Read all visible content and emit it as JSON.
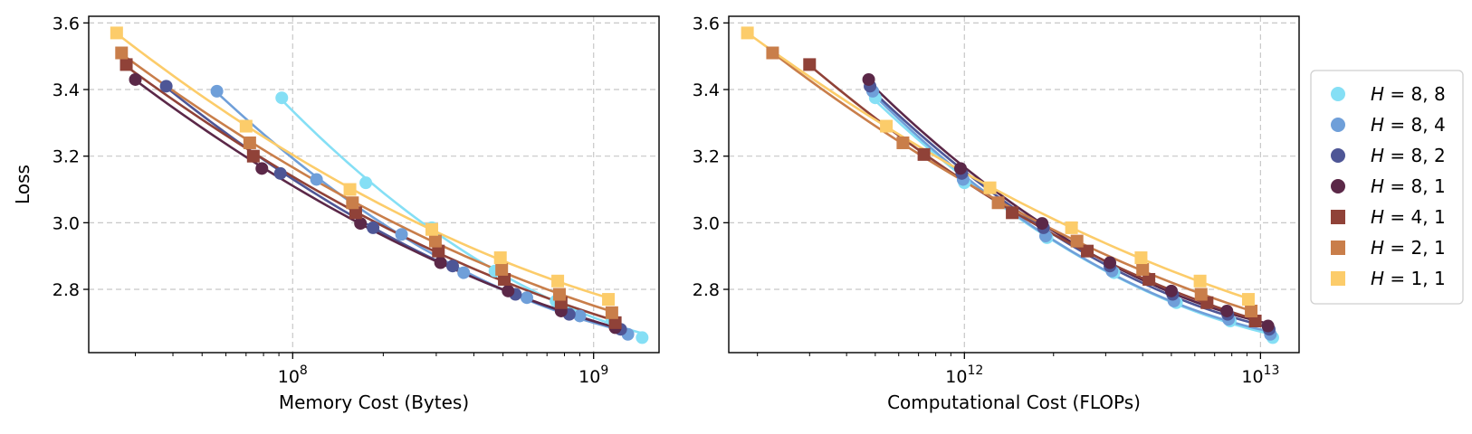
{
  "chart_data": [
    {
      "type": "scatter",
      "title": "",
      "xlabel": "Memory Cost (Bytes)",
      "ylabel": "Loss",
      "xscale": "log",
      "xlim": [
        21000000,
        1650000000
      ],
      "ylim": [
        2.61,
        3.62
      ],
      "xtick_labels": [
        "10^8",
        "10^9"
      ],
      "ytick_labels": [
        "2.8",
        "3.0",
        "3.2",
        "3.4",
        "3.6"
      ],
      "grid": true,
      "series": [
        {
          "name": "H=8,8",
          "marker": "circle",
          "color": "#85dff5",
          "x": [
            92000000,
            175000000,
            290000000,
            470000000,
            750000000,
            1150000000,
            1450000000
          ],
          "y": [
            3.375,
            3.12,
            2.985,
            2.855,
            2.765,
            2.71,
            2.655
          ]
        },
        {
          "name": "H=8,4",
          "marker": "circle",
          "color": "#6f9fd9",
          "x": [
            56000000,
            120000000,
            230000000,
            370000000,
            600000000,
            900000000,
            1300000000
          ],
          "y": [
            3.395,
            3.13,
            2.965,
            2.85,
            2.775,
            2.72,
            2.665
          ]
        },
        {
          "name": "H=8,2",
          "marker": "circle",
          "color": "#4e5696",
          "x": [
            38000000,
            91000000,
            185000000,
            340000000,
            550000000,
            830000000,
            1230000000
          ],
          "y": [
            3.41,
            3.148,
            2.985,
            2.87,
            2.785,
            2.725,
            2.68
          ]
        },
        {
          "name": "H=8,1",
          "marker": "circle",
          "color": "#5b2848",
          "x": [
            30000000,
            79000000,
            168000000,
            310000000,
            520000000,
            780000000,
            1180000000
          ],
          "y": [
            3.43,
            3.163,
            2.998,
            2.88,
            2.795,
            2.735,
            2.685
          ]
        },
        {
          "name": "H=4,1",
          "marker": "square",
          "color": "#904238",
          "x": [
            28000000,
            74000000,
            162000000,
            305000000,
            505000000,
            780000000,
            1180000000
          ],
          "y": [
            3.475,
            3.2,
            3.03,
            2.915,
            2.83,
            2.76,
            2.7
          ]
        },
        {
          "name": "H=2,1",
          "marker": "square",
          "color": "#c97e4a",
          "x": [
            27000000,
            72000000,
            158000000,
            298000000,
            495000000,
            770000000,
            1150000000
          ],
          "y": [
            3.51,
            3.24,
            3.06,
            2.945,
            2.86,
            2.785,
            2.73
          ]
        },
        {
          "name": "H=1,1",
          "marker": "square",
          "color": "#fccc6a",
          "x": [
            26000000,
            70000000,
            155000000,
            290000000,
            490000000,
            760000000,
            1120000000
          ],
          "y": [
            3.57,
            3.29,
            3.1,
            2.98,
            2.895,
            2.825,
            2.77
          ]
        }
      ]
    },
    {
      "type": "scatter",
      "title": "",
      "xlabel": "Computational Cost (FLOPs)",
      "ylabel": "",
      "xscale": "log",
      "xlim": [
        160000000000,
        13500000000000
      ],
      "ylim": [
        2.61,
        3.62
      ],
      "xtick_labels": [
        "10^12",
        "10^13"
      ],
      "ytick_labels": [
        "2.8",
        "3.0",
        "3.2",
        "3.4",
        "3.6"
      ],
      "grid": true,
      "series": [
        {
          "name": "H=8,8",
          "marker": "circle",
          "color": "#85dff5",
          "x": [
            500000000000,
            1000000000000,
            1900000000000,
            3200000000000,
            5200000000000,
            7900000000000,
            11000000000000
          ],
          "y": [
            3.375,
            3.12,
            2.955,
            2.85,
            2.76,
            2.705,
            2.655
          ]
        },
        {
          "name": "H=8,4",
          "marker": "circle",
          "color": "#6f9fd9",
          "x": [
            490000000000,
            990000000000,
            1880000000000,
            3150000000000,
            5100000000000,
            7800000000000,
            10800000000000
          ],
          "y": [
            3.395,
            3.13,
            2.96,
            2.855,
            2.765,
            2.71,
            2.665
          ]
        },
        {
          "name": "H=8,2",
          "marker": "circle",
          "color": "#4e5696",
          "x": [
            480000000000,
            980000000000,
            1850000000000,
            3100000000000,
            5050000000000,
            7750000000000,
            10700000000000
          ],
          "y": [
            3.41,
            3.148,
            2.985,
            2.87,
            2.785,
            2.725,
            2.68
          ]
        },
        {
          "name": "H=8,1",
          "marker": "circle",
          "color": "#5b2848",
          "x": [
            475000000000,
            970000000000,
            1830000000000,
            3100000000000,
            5000000000000,
            7700000000000,
            10600000000000
          ],
          "y": [
            3.43,
            3.163,
            2.998,
            2.88,
            2.795,
            2.735,
            2.69
          ]
        },
        {
          "name": "H=4,1",
          "marker": "square",
          "color": "#904238",
          "x": [
            300000000000,
            730000000000,
            1450000000000,
            2600000000000,
            4200000000000,
            6600000000000,
            9600000000000
          ],
          "y": [
            3.475,
            3.205,
            3.03,
            2.915,
            2.83,
            2.76,
            2.705
          ]
        },
        {
          "name": "H=2,1",
          "marker": "square",
          "color": "#c97e4a",
          "x": [
            225000000000,
            620000000000,
            1300000000000,
            2400000000000,
            4000000000000,
            6300000000000,
            9300000000000
          ],
          "y": [
            3.51,
            3.24,
            3.06,
            2.945,
            2.86,
            2.785,
            2.735
          ]
        },
        {
          "name": "H=1,1",
          "marker": "square",
          "color": "#fccc6a",
          "x": [
            185000000000,
            545000000000,
            1220000000000,
            2300000000000,
            3950000000000,
            6250000000000,
            9100000000000
          ],
          "y": [
            3.57,
            3.29,
            3.105,
            2.985,
            2.895,
            2.825,
            2.77
          ]
        }
      ]
    }
  ],
  "legend": {
    "placement": "right",
    "entries": [
      {
        "prefix": "H",
        "value": " = 8, 8",
        "marker": "circle",
        "color": "#85dff5"
      },
      {
        "prefix": "H",
        "value": " = 8, 4",
        "marker": "circle",
        "color": "#6f9fd9"
      },
      {
        "prefix": "H",
        "value": " = 8, 2",
        "marker": "circle",
        "color": "#4e5696"
      },
      {
        "prefix": "H",
        "value": " = 8, 1",
        "marker": "circle",
        "color": "#5b2848"
      },
      {
        "prefix": "H",
        "value": " = 4, 1",
        "marker": "square",
        "color": "#904238"
      },
      {
        "prefix": "H",
        "value": " = 2, 1",
        "marker": "square",
        "color": "#c97e4a"
      },
      {
        "prefix": "H",
        "value": " = 1, 1",
        "marker": "square",
        "color": "#fccc6a"
      }
    ]
  }
}
